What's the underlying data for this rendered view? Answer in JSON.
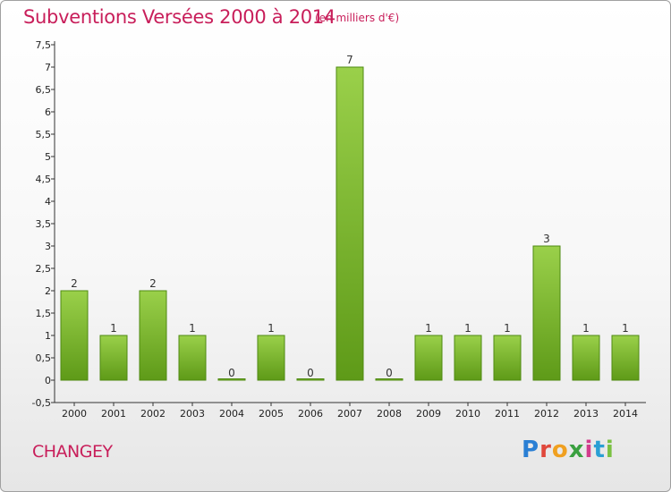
{
  "header": {
    "title": "Subventions Versées 2000 à 2014",
    "subtitle": "(en milliers d'€)"
  },
  "footer": {
    "commune": "CHANGEY",
    "brand": "Proxiti"
  },
  "colors": {
    "title": "#c81e5a",
    "bar_top": "#9ad04a",
    "bar_bottom": "#5e9a18",
    "bar_edge": "#4f8a12"
  },
  "chart_data": {
    "type": "bar",
    "title": "Subventions Versées 2000 à 2014",
    "subtitle": "(en milliers d'€)",
    "xlabel": "",
    "ylabel": "",
    "categories": [
      "2000",
      "2001",
      "2002",
      "2003",
      "2004",
      "2005",
      "2006",
      "2007",
      "2008",
      "2009",
      "2010",
      "2011",
      "2012",
      "2013",
      "2014"
    ],
    "values": [
      2,
      1,
      2,
      1,
      0,
      1,
      0,
      7,
      0,
      1,
      1,
      1,
      3,
      1,
      1
    ],
    "data_labels": [
      "2",
      "1",
      "2",
      "1",
      "0",
      "1",
      "0",
      "7",
      "0",
      "1",
      "1",
      "1",
      "3",
      "1",
      "1"
    ],
    "y_ticks": [
      "-0,5",
      "0",
      "0,5",
      "1",
      "1,5",
      "2",
      "2,5",
      "3",
      "3,5",
      "4",
      "4,5",
      "5",
      "5,5",
      "6",
      "6,5",
      "7",
      "7,5"
    ],
    "y_tick_values": [
      -0.5,
      0,
      0.5,
      1,
      1.5,
      2,
      2.5,
      3,
      3.5,
      4,
      4.5,
      5,
      5.5,
      6,
      6.5,
      7,
      7.5
    ],
    "ylim": [
      -0.5,
      7.5
    ],
    "grid": false,
    "legend": "none"
  }
}
